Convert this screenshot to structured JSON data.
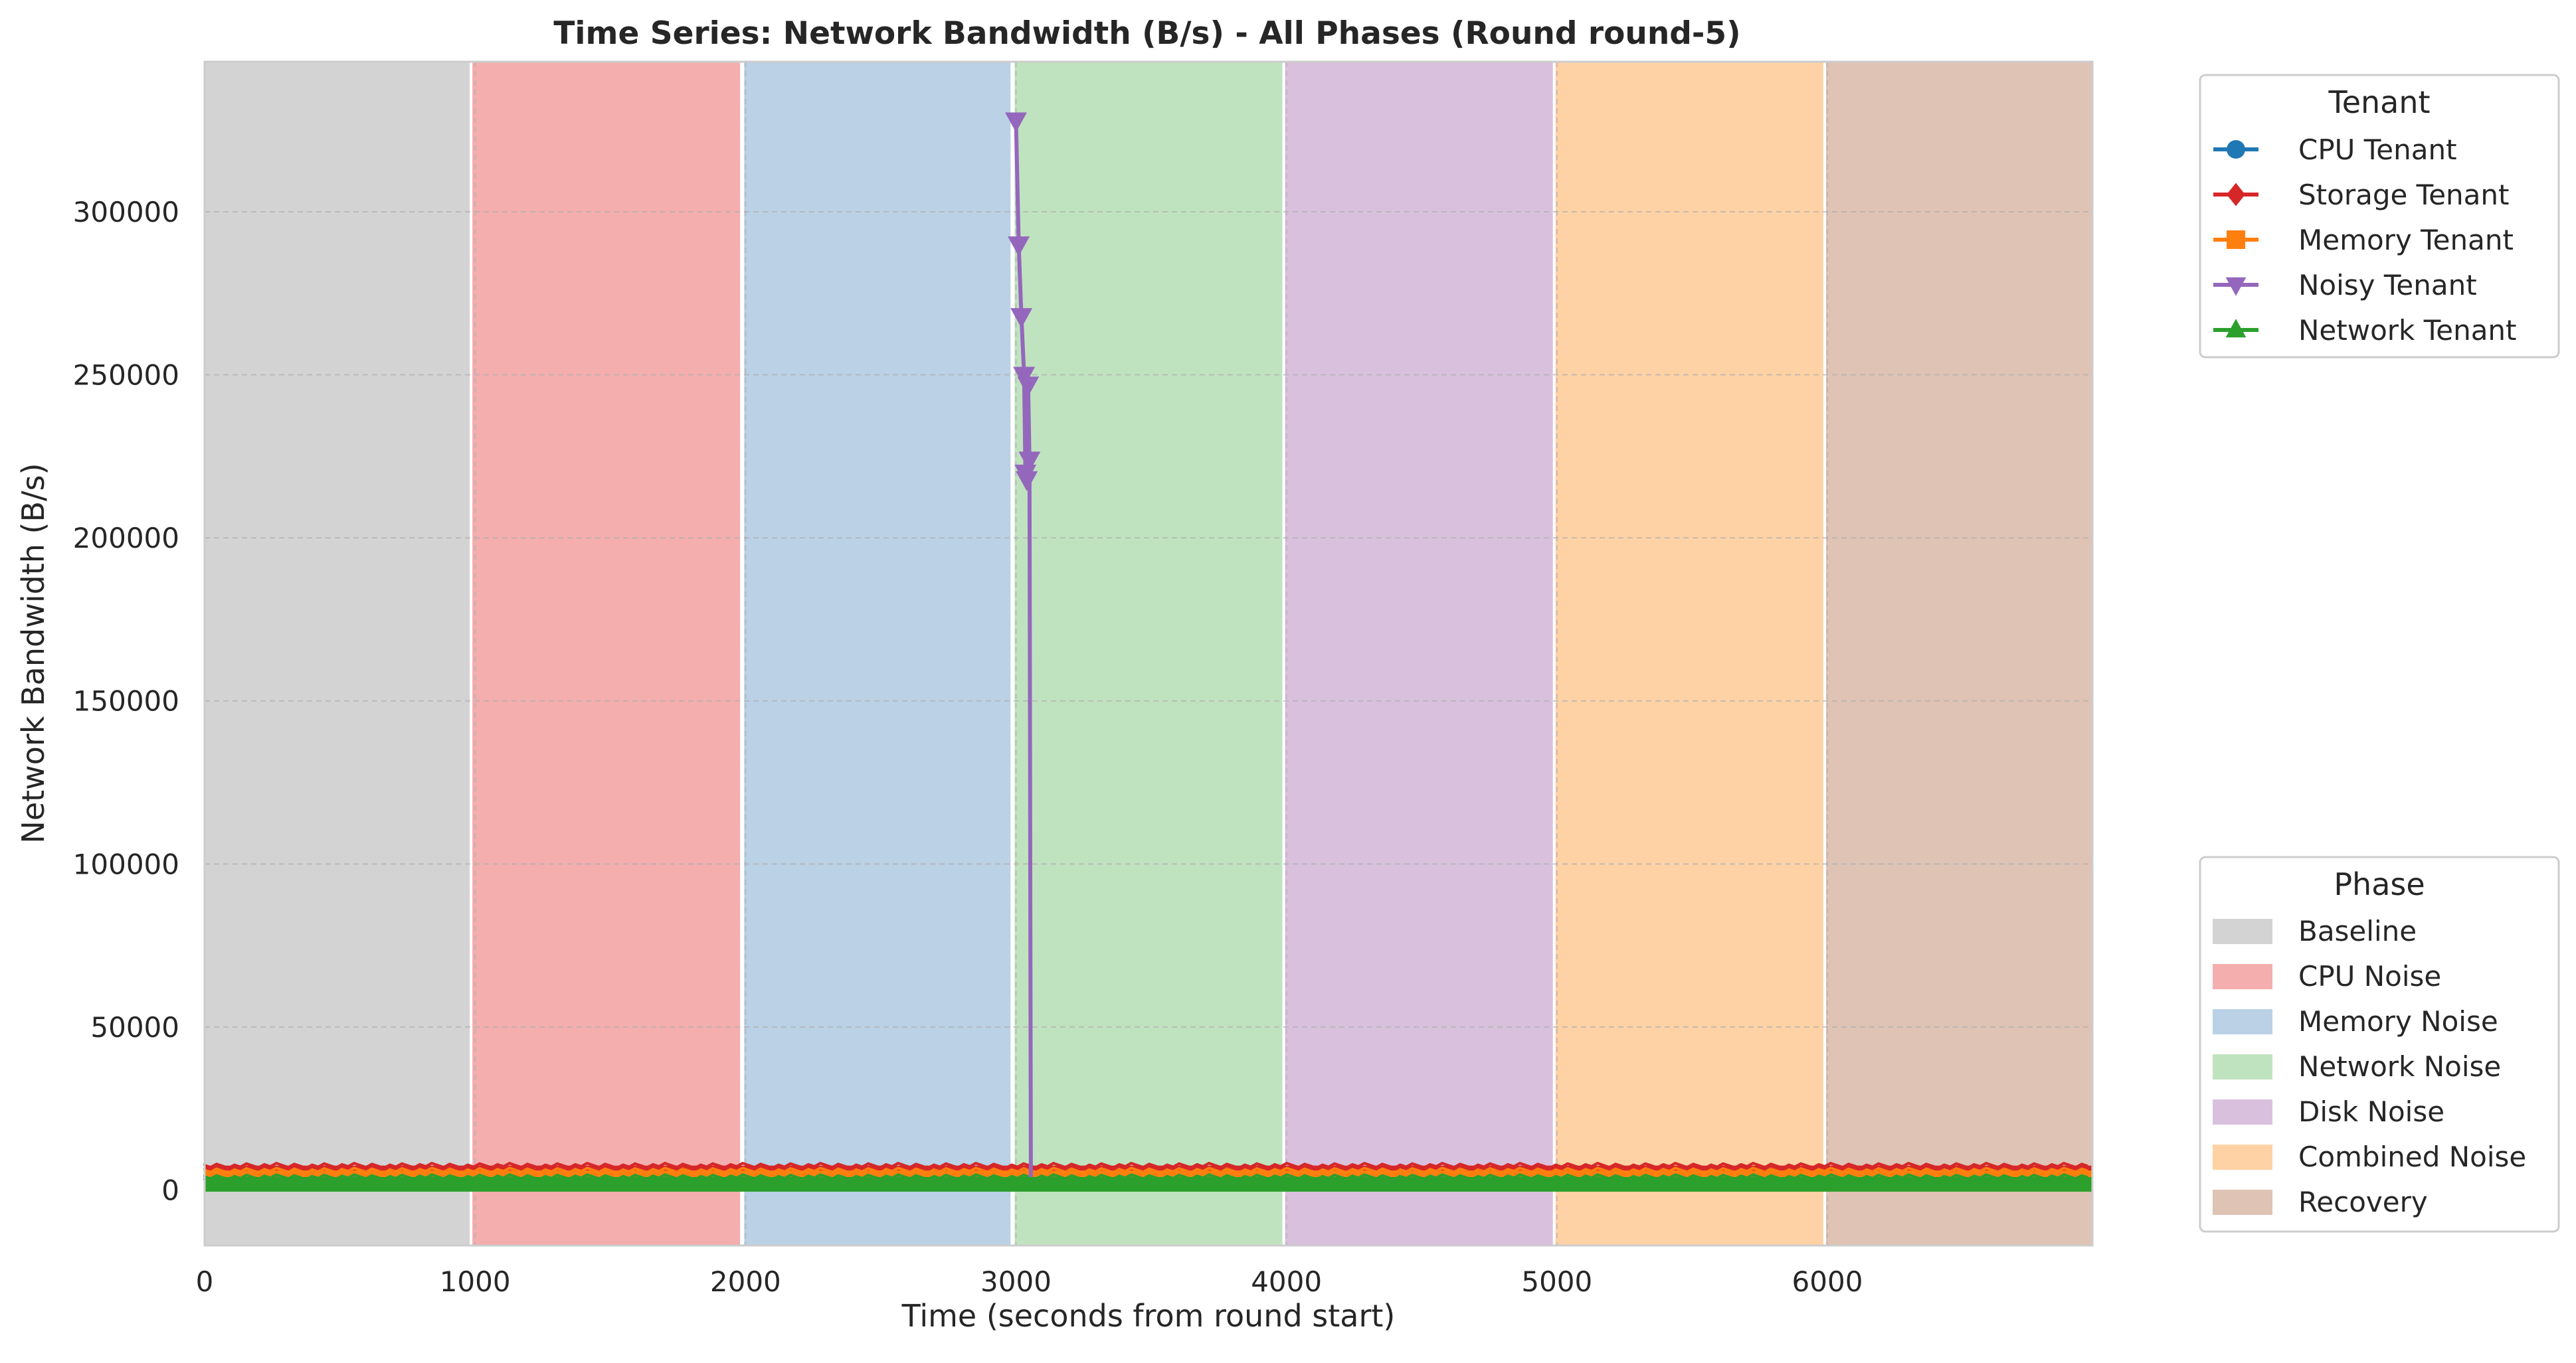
{
  "chart_data": {
    "type": "line",
    "title": "Time Series: Network Bandwidth (B/s) - All Phases (Round round-5)",
    "xlabel": "Time (seconds from round start)",
    "ylabel": "Network Bandwidth (B/s)",
    "xlim": [
      0,
      6980
    ],
    "ylim": [
      -17000,
      346000
    ],
    "xticks": [
      0,
      1000,
      2000,
      3000,
      4000,
      5000,
      6000
    ],
    "yticks": [
      0,
      50000,
      100000,
      150000,
      200000,
      250000,
      300000
    ],
    "grid": true,
    "phases": [
      {
        "name": "Baseline",
        "start": 0,
        "end": 980,
        "color": "#d3d3d3"
      },
      {
        "name": "CPU Noise",
        "start": 990,
        "end": 1980,
        "color": "#f4aeae"
      },
      {
        "name": "Memory Noise",
        "start": 1995,
        "end": 2980,
        "color": "#bad1e6"
      },
      {
        "name": "Network Noise",
        "start": 2995,
        "end": 3985,
        "color": "#c0e3bf"
      },
      {
        "name": "Disk Noise",
        "start": 3995,
        "end": 4985,
        "color": "#d9c1de"
      },
      {
        "name": "Combined Noise",
        "start": 4995,
        "end": 5985,
        "color": "#fed2a5"
      },
      {
        "name": "Recovery",
        "start": 5995,
        "end": 6980,
        "color": "#dfc3b4"
      }
    ],
    "series": [
      {
        "name": "Storage Tenant",
        "color": "#d62728",
        "marker": "diamond",
        "band": {
          "x": [
            0,
            6980
          ],
          "low": 2000,
          "high": 7500
        }
      },
      {
        "name": "Memory Tenant",
        "color": "#ff7f0e",
        "marker": "square",
        "band": {
          "x": [
            0,
            6980
          ],
          "low": 1500,
          "high": 6000
        }
      },
      {
        "name": "CPU Tenant",
        "color": "#1f77b4",
        "marker": "circle",
        "band": {
          "x": [
            0,
            6980
          ],
          "low": 0,
          "high": 3000
        }
      },
      {
        "name": "Network Tenant",
        "color": "#2ca02c",
        "marker": "triangle-up",
        "band": {
          "x": [
            0,
            6980
          ],
          "low": -500,
          "high": 4000
        }
      },
      {
        "name": "Noisy Tenant",
        "color": "#9467bd",
        "marker": "triangle-down",
        "x": [
          3000,
          3010,
          3020,
          3030,
          3035,
          3040,
          3045,
          3050,
          3055
        ],
        "values": [
          328000,
          290000,
          268000,
          250000,
          220000,
          218000,
          247000,
          224000,
          4000
        ]
      }
    ],
    "legend_tenant": {
      "title": "Tenant",
      "placement": "upper-right-outside",
      "entries": [
        {
          "label": "CPU Tenant",
          "color": "#1f77b4",
          "marker": "circle"
        },
        {
          "label": "Storage Tenant",
          "color": "#d62728",
          "marker": "diamond"
        },
        {
          "label": "Memory Tenant",
          "color": "#ff7f0e",
          "marker": "square"
        },
        {
          "label": "Noisy Tenant",
          "color": "#9467bd",
          "marker": "triangle-down"
        },
        {
          "label": "Network Tenant",
          "color": "#2ca02c",
          "marker": "triangle-up"
        }
      ]
    },
    "legend_phase": {
      "title": "Phase",
      "placement": "lower-right-outside",
      "entries": [
        {
          "label": "Baseline",
          "color": "#d3d3d3"
        },
        {
          "label": "CPU Noise",
          "color": "#f4aeae"
        },
        {
          "label": "Memory Noise",
          "color": "#bad1e6"
        },
        {
          "label": "Network Noise",
          "color": "#c0e3bf"
        },
        {
          "label": "Disk Noise",
          "color": "#d9c1de"
        },
        {
          "label": "Combined Noise",
          "color": "#fed2a5"
        },
        {
          "label": "Recovery",
          "color": "#dfc3b4"
        }
      ]
    }
  }
}
